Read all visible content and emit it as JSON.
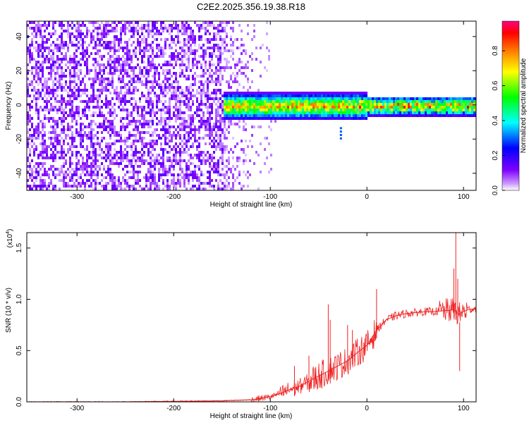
{
  "title": "C2E2.2025.356.19.38.R18",
  "chart_data": [
    {
      "type": "heatmap",
      "name": "spectrogram",
      "xlabel": "Height of straight line (km)",
      "ylabel": "Frequency (Hz)",
      "xlim": [
        -352,
        113
      ],
      "ylim": [
        -50,
        49
      ],
      "xticks": [
        -300,
        -200,
        -100,
        0,
        100
      ],
      "yticks": [
        -40,
        -20,
        0,
        20,
        40
      ],
      "colorbar": {
        "label": "Normalized spectral amplitude",
        "range": [
          0,
          0.97
        ],
        "ticks": [
          0.0,
          0.2,
          0.4,
          0.6,
          0.8
        ],
        "colors": [
          "#ffffff",
          "#7f00ff",
          "#0000ff",
          "#00ffff",
          "#00ff00",
          "#ffff00",
          "#ff8000",
          "#ff0000",
          "#ff0080"
        ]
      },
      "regions": [
        {
          "description": "broadband noise",
          "x_range": [
            -352,
            -150
          ],
          "freq_range": [
            -50,
            49
          ],
          "amplitude": 0.1
        },
        {
          "description": "noise tail",
          "x_range": [
            -150,
            -110
          ],
          "freq_range": [
            -50,
            49
          ],
          "amplitude": 0.05
        },
        {
          "description": "signal band",
          "x_range": [
            -150,
            113
          ],
          "freq_center": 0,
          "freq_halfwidth": 4,
          "peak_amplitude": 0.97
        }
      ]
    },
    {
      "type": "line",
      "name": "snr",
      "xlabel": "Height of straight line (km)",
      "ylabel": "SNR (10 * v/v)",
      "scale_label": "(x10",
      "scale_exponent": "4",
      "scale_suffix": ")",
      "xlim": [
        -352,
        113
      ],
      "ylim": [
        0,
        1.65
      ],
      "xticks": [
        -300,
        -200,
        -100,
        0,
        100
      ],
      "yticks": [
        0.0,
        0.5,
        1.0,
        1.5
      ],
      "color": "#ee2222",
      "series": [
        {
          "name": "SNR",
          "x": [
            -352,
            -250,
            -200,
            -150,
            -120,
            -100,
            -90,
            -80,
            -70,
            -60,
            -50,
            -40,
            -30,
            -20,
            -10,
            0,
            10,
            20,
            30,
            40,
            50,
            60,
            70,
            80,
            85,
            90,
            95,
            100,
            105,
            113
          ],
          "values": [
            0.0,
            0.0,
            0.005,
            0.01,
            0.02,
            0.05,
            0.08,
            0.12,
            0.15,
            0.2,
            0.25,
            0.3,
            0.35,
            0.4,
            0.48,
            0.55,
            0.7,
            0.8,
            0.84,
            0.86,
            0.87,
            0.88,
            0.88,
            0.89,
            0.89,
            0.9,
            0.85,
            0.88,
            0.9,
            0.91
          ]
        },
        {
          "name": "spikes",
          "x": [
            -75,
            -60,
            -40,
            -38,
            -20,
            -15,
            10,
            90,
            92,
            94,
            96
          ],
          "values": [
            0.35,
            0.45,
            0.95,
            0.8,
            0.75,
            0.7,
            1.1,
            1.3,
            1.65,
            1.2,
            0.3
          ]
        }
      ]
    }
  ]
}
